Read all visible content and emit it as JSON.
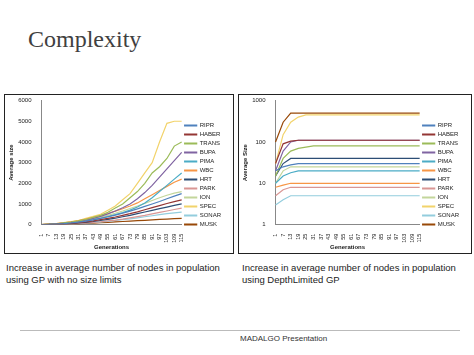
{
  "slide": {
    "title": "Complexity",
    "captions": [
      "Increase in average number of nodes in population using GP with no size limits",
      "Increase in average number of nodes in population using DepthLimited GP"
    ],
    "footer": "MADALGO Presentation"
  },
  "chart_data": [
    {
      "type": "line",
      "x_label": "Generations",
      "y_label": "Average size",
      "categories": [
        "1",
        "7",
        "13",
        "19",
        "25",
        "31",
        "37",
        "43",
        "49",
        "55",
        "61",
        "67",
        "73",
        "79",
        "85",
        "91",
        "97",
        "103",
        "109",
        "115"
      ],
      "ylim": [
        0,
        6000
      ],
      "yticks": [
        0,
        1000,
        2000,
        3000,
        4000,
        5000,
        6000
      ],
      "grid": false,
      "legend": "right",
      "series": [
        {
          "name": "RIPR",
          "color": "#4f81bd",
          "values": [
            0,
            10,
            30,
            50,
            80,
            120,
            170,
            230,
            300,
            380,
            460,
            550,
            650,
            760,
            880,
            1000,
            1120,
            1250,
            1380,
            1500
          ]
        },
        {
          "name": "HABER",
          "color": "#943634",
          "values": [
            0,
            10,
            20,
            40,
            60,
            90,
            130,
            180,
            240,
            300,
            370,
            450,
            530,
            620,
            720,
            820,
            920,
            1020,
            1110,
            1200
          ]
        },
        {
          "name": "TRANS",
          "color": "#9bbb59",
          "values": [
            0,
            20,
            40,
            80,
            120,
            180,
            250,
            350,
            450,
            600,
            800,
            1000,
            1300,
            1600,
            2000,
            2500,
            2800,
            3200,
            3800,
            4000
          ]
        },
        {
          "name": "BUPA",
          "color": "#8064a2",
          "values": [
            0,
            15,
            40,
            70,
            110,
            160,
            220,
            300,
            400,
            520,
            660,
            820,
            1000,
            1250,
            1550,
            1900,
            2300,
            2700,
            3100,
            3500
          ]
        },
        {
          "name": "PIMA",
          "color": "#4bacc6",
          "values": [
            0,
            10,
            30,
            60,
            90,
            130,
            180,
            240,
            310,
            390,
            480,
            580,
            700,
            850,
            1050,
            1300,
            1600,
            1900,
            2200,
            2500
          ]
        },
        {
          "name": "WBC",
          "color": "#f79646",
          "values": [
            0,
            20,
            50,
            90,
            140,
            200,
            270,
            350,
            440,
            540,
            650,
            770,
            900,
            1050,
            1250,
            1450,
            1650,
            1850,
            2050,
            2200
          ]
        },
        {
          "name": "HRT",
          "color": "#2c4d75",
          "values": [
            0,
            10,
            20,
            30,
            50,
            80,
            110,
            150,
            200,
            250,
            310,
            380,
            450,
            530,
            610,
            690,
            770,
            850,
            930,
            1000
          ]
        },
        {
          "name": "PARK",
          "color": "#d99694",
          "values": [
            0,
            10,
            20,
            30,
            40,
            60,
            80,
            110,
            140,
            180,
            220,
            270,
            330,
            390,
            450,
            520,
            590,
            660,
            730,
            800
          ]
        },
        {
          "name": "ION",
          "color": "#c3d69b",
          "values": [
            0,
            15,
            35,
            60,
            100,
            150,
            210,
            280,
            360,
            450,
            550,
            660,
            780,
            900,
            1030,
            1170,
            1300,
            1420,
            1520,
            1600
          ]
        },
        {
          "name": "SPEC",
          "color": "#f2d36b",
          "values": [
            0,
            20,
            50,
            100,
            150,
            200,
            300,
            400,
            500,
            700,
            900,
            1200,
            1500,
            2000,
            2500,
            3000,
            4000,
            4900,
            5000,
            5000
          ]
        },
        {
          "name": "SONAR",
          "color": "#93cddd",
          "values": [
            0,
            10,
            20,
            30,
            45,
            60,
            80,
            100,
            130,
            160,
            200,
            240,
            280,
            330,
            380,
            430,
            480,
            530,
            570,
            600
          ]
        },
        {
          "name": "MUSK",
          "color": "#984807",
          "values": [
            0,
            5,
            10,
            20,
            30,
            40,
            55,
            70,
            90,
            110,
            130,
            150,
            170,
            190,
            210,
            230,
            250,
            270,
            290,
            300
          ]
        }
      ]
    },
    {
      "type": "line",
      "x_label": "Generations",
      "y_label": "Average Size",
      "log": "y",
      "categories": [
        "1",
        "7",
        "13",
        "19",
        "25",
        "31",
        "37",
        "43",
        "49",
        "55",
        "61",
        "67",
        "73",
        "79",
        "85",
        "91",
        "97",
        "103",
        "109",
        "115"
      ],
      "ylim": [
        1,
        1000
      ],
      "yticks": [
        1,
        10,
        100,
        1000
      ],
      "grid": false,
      "legend": "right",
      "series": [
        {
          "name": "RIPR",
          "color": "#4f81bd",
          "values": [
            20,
            25,
            28,
            30,
            30,
            30,
            30,
            30,
            30,
            30,
            30,
            30,
            30,
            30,
            30,
            30,
            30,
            30,
            30,
            30
          ]
        },
        {
          "name": "HABER",
          "color": "#943634",
          "values": [
            30,
            90,
            105,
            110,
            110,
            110,
            110,
            110,
            110,
            110,
            110,
            110,
            110,
            110,
            110,
            110,
            110,
            110,
            110,
            110
          ]
        },
        {
          "name": "TRANS",
          "color": "#9bbb59",
          "values": [
            15,
            40,
            60,
            70,
            75,
            80,
            80,
            80,
            80,
            80,
            80,
            80,
            80,
            80,
            80,
            80,
            80,
            80,
            80,
            80
          ]
        },
        {
          "name": "BUPA",
          "color": "#8064a2",
          "values": [
            20,
            60,
            100,
            110,
            110,
            110,
            110,
            110,
            110,
            110,
            110,
            110,
            110,
            110,
            110,
            110,
            110,
            110,
            110,
            110
          ]
        },
        {
          "name": "PIMA",
          "color": "#4bacc6",
          "values": [
            10,
            15,
            18,
            20,
            20,
            20,
            20,
            20,
            20,
            20,
            20,
            20,
            20,
            20,
            20,
            20,
            20,
            20,
            20,
            20
          ]
        },
        {
          "name": "WBC",
          "color": "#f79646",
          "values": [
            8,
            9,
            10,
            10,
            10,
            10,
            10,
            10,
            10,
            10,
            10,
            10,
            10,
            10,
            10,
            10,
            10,
            10,
            10,
            10
          ]
        },
        {
          "name": "HRT",
          "color": "#2c4d75",
          "values": [
            15,
            30,
            40,
            40,
            40,
            40,
            40,
            40,
            40,
            40,
            40,
            40,
            40,
            40,
            40,
            40,
            40,
            40,
            40,
            40
          ]
        },
        {
          "name": "PARK",
          "color": "#d99694",
          "values": [
            5,
            7,
            8,
            8,
            8,
            8,
            8,
            8,
            8,
            8,
            8,
            8,
            8,
            8,
            8,
            8,
            8,
            8,
            8,
            8
          ]
        },
        {
          "name": "ION",
          "color": "#c3d69b",
          "values": [
            10,
            20,
            25,
            25,
            25,
            25,
            25,
            25,
            25,
            25,
            25,
            25,
            25,
            25,
            25,
            25,
            25,
            25,
            25,
            25
          ]
        },
        {
          "name": "SPEC",
          "color": "#f2d36b",
          "values": [
            30,
            150,
            300,
            400,
            450,
            450,
            450,
            450,
            450,
            450,
            450,
            450,
            450,
            450,
            450,
            450,
            450,
            450,
            450,
            450
          ]
        },
        {
          "name": "SONAR",
          "color": "#93cddd",
          "values": [
            3,
            4,
            5,
            5,
            5,
            5,
            5,
            5,
            5,
            5,
            5,
            5,
            5,
            5,
            5,
            5,
            5,
            5,
            5,
            5
          ]
        },
        {
          "name": "MUSK",
          "color": "#984807",
          "values": [
            100,
            300,
            500,
            500,
            500,
            500,
            500,
            500,
            500,
            500,
            500,
            500,
            500,
            500,
            500,
            500,
            500,
            500,
            500,
            500
          ]
        }
      ]
    }
  ]
}
